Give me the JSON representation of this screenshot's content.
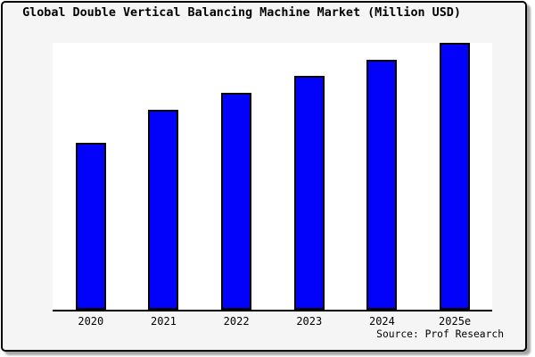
{
  "chart": {
    "title": "Global Double Vertical Balancing Machine Market (Million USD)",
    "source_credit": "Source: Prof Research"
  },
  "chart_data": {
    "type": "bar",
    "title": "Global Double Vertical Balancing Machine Market (Million USD)",
    "xlabel": "",
    "ylabel": "",
    "categories": [
      "2020",
      "2021",
      "2022",
      "2023",
      "2024",
      "2025e"
    ],
    "values": [
      62.5,
      75.0,
      81.3,
      87.5,
      93.7,
      100.0
    ],
    "values_note": "No y-axis or data labels are shown in the image; values are relative bar heights indexed to 2025e = 100",
    "ylim": [
      0,
      100
    ],
    "y_axis_visible": false,
    "grid": false,
    "legend": false,
    "annotations": [
      "Source: Prof Research"
    ],
    "colors": {
      "bar_fill": "#0202fa",
      "bar_border": "#000000",
      "plot_bg": "#ffffff",
      "frame_bg": "#f5f5f5",
      "axis": "#000000",
      "text": "#000000"
    }
  }
}
